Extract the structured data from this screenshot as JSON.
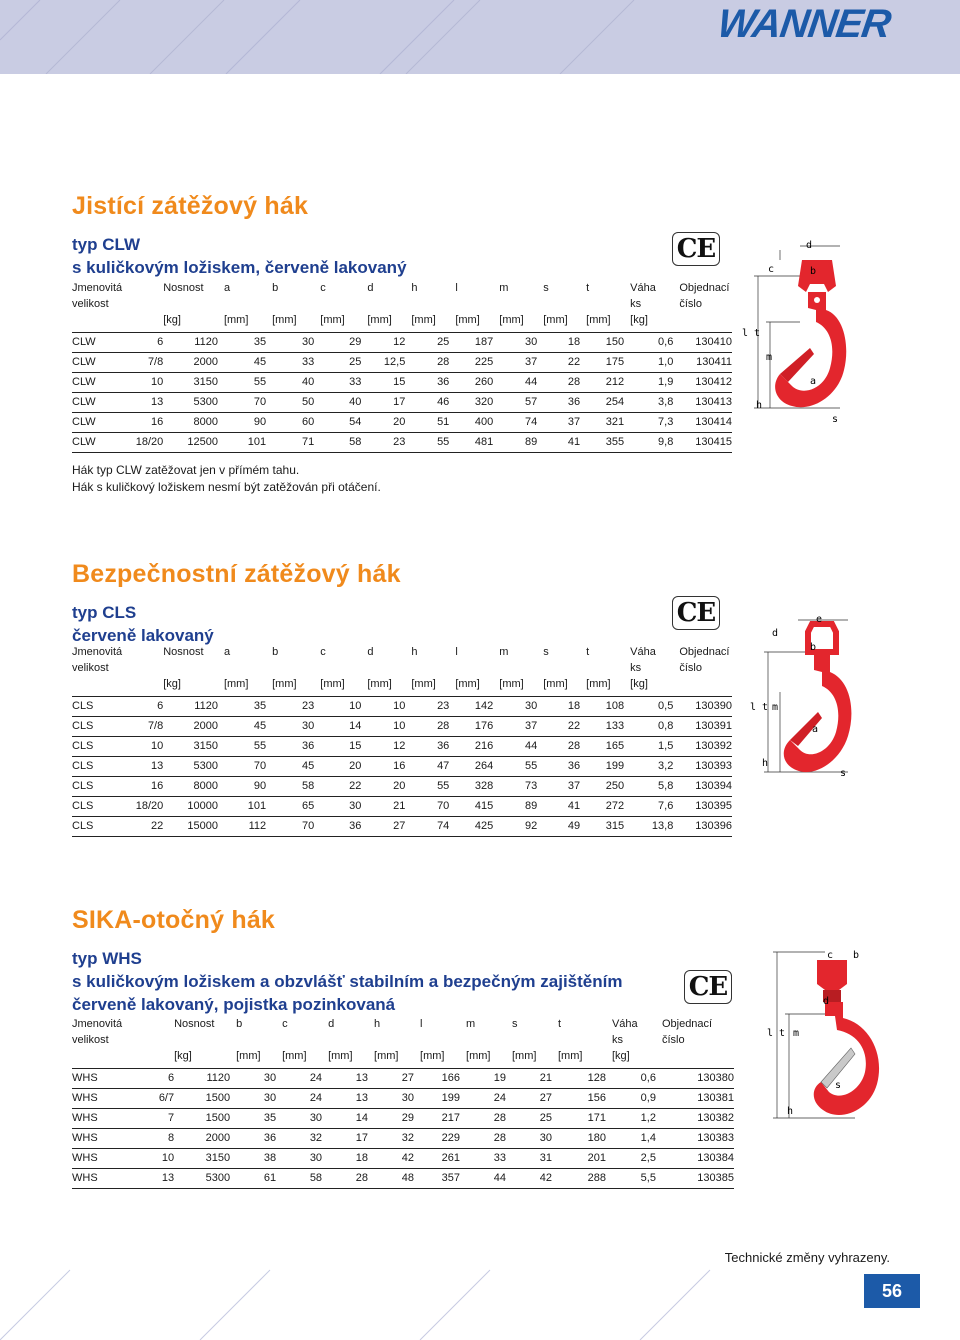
{
  "header": {
    "brand": "WANNER"
  },
  "sections": [
    {
      "title": "Jistící zátěžový hák",
      "subtitles": [
        "typ CLW",
        "s kuličkovým ložiskem, červeně lakovaný"
      ],
      "ce": "CE",
      "headers1": [
        "Jmenovitá",
        "",
        "Nosnost",
        "a",
        "b",
        "c",
        "d",
        "h",
        "l",
        "m",
        "s",
        "t",
        "Váha",
        "Objednací"
      ],
      "headers2": [
        "velikost",
        "",
        "",
        "",
        "",
        "",
        "",
        "",
        "",
        "",
        "",
        "",
        "ks",
        "číslo"
      ],
      "units": [
        "",
        "",
        "[kg]",
        "[mm]",
        "[mm]",
        "[mm]",
        "[mm]",
        "[mm]",
        "[mm]",
        "[mm]",
        "[mm]",
        "[mm]",
        "[kg]",
        ""
      ],
      "rows": [
        [
          "CLW",
          "6",
          "1120",
          "35",
          "30",
          "29",
          "12",
          "25",
          "187",
          "30",
          "18",
          "150",
          "0,6",
          "130410"
        ],
        [
          "CLW",
          "7/8",
          "2000",
          "45",
          "33",
          "25",
          "12,5",
          "28",
          "225",
          "37",
          "22",
          "175",
          "1,0",
          "130411"
        ],
        [
          "CLW",
          "10",
          "3150",
          "55",
          "40",
          "33",
          "15",
          "36",
          "260",
          "44",
          "28",
          "212",
          "1,9",
          "130412"
        ],
        [
          "CLW",
          "13",
          "5300",
          "70",
          "50",
          "40",
          "17",
          "46",
          "320",
          "57",
          "36",
          "254",
          "3,8",
          "130413"
        ],
        [
          "CLW",
          "16",
          "8000",
          "90",
          "60",
          "54",
          "20",
          "51",
          "400",
          "74",
          "37",
          "321",
          "7,3",
          "130414"
        ],
        [
          "CLW",
          "18/20",
          "12500",
          "101",
          "71",
          "58",
          "23",
          "55",
          "481",
          "89",
          "41",
          "355",
          "9,8",
          "130415"
        ]
      ],
      "notes": [
        "Hák typ CLW  zatěžovat jen v přímém tahu.",
        "Hák s kuličkový ložiskem nesmí být zatěžován při otáčení."
      ],
      "diagram_labels": [
        "c",
        "d",
        "b",
        "l t",
        "m",
        "a",
        "h",
        "s"
      ]
    },
    {
      "title": "Bezpečnostní zátěžový hák",
      "subtitles": [
        "typ CLS",
        "červeně lakovaný"
      ],
      "ce": "CE",
      "headers1": [
        "Jmenovitá",
        "",
        "Nosnost",
        "a",
        "b",
        "c",
        "d",
        "h",
        "l",
        "m",
        "s",
        "t",
        "Váha",
        "Objednací"
      ],
      "headers2": [
        "velikost",
        "",
        "",
        "",
        "",
        "",
        "",
        "",
        "",
        "",
        "",
        "",
        "ks",
        "číslo"
      ],
      "units": [
        "",
        "",
        "[kg]",
        "[mm]",
        "[mm]",
        "[mm]",
        "[mm]",
        "[mm]",
        "[mm]",
        "[mm]",
        "[mm]",
        "[mm]",
        "[kg]",
        ""
      ],
      "rows": [
        [
          "CLS",
          "6",
          "1120",
          "35",
          "23",
          "10",
          "10",
          "23",
          "142",
          "30",
          "18",
          "108",
          "0,5",
          "130390"
        ],
        [
          "CLS",
          "7/8",
          "2000",
          "45",
          "30",
          "14",
          "10",
          "28",
          "176",
          "37",
          "22",
          "133",
          "0,8",
          "130391"
        ],
        [
          "CLS",
          "10",
          "3150",
          "55",
          "36",
          "15",
          "12",
          "36",
          "216",
          "44",
          "28",
          "165",
          "1,5",
          "130392"
        ],
        [
          "CLS",
          "13",
          "5300",
          "70",
          "45",
          "20",
          "16",
          "47",
          "264",
          "55",
          "36",
          "199",
          "3,2",
          "130393"
        ],
        [
          "CLS",
          "16",
          "8000",
          "90",
          "58",
          "22",
          "20",
          "55",
          "328",
          "73",
          "37",
          "250",
          "5,8",
          "130394"
        ],
        [
          "CLS",
          "18/20",
          "10000",
          "101",
          "65",
          "30",
          "21",
          "70",
          "415",
          "89",
          "41",
          "272",
          "7,6",
          "130395"
        ],
        [
          "CLS",
          "22",
          "15000",
          "112",
          "70",
          "36",
          "27",
          "74",
          "425",
          "92",
          "49",
          "315",
          "13,8",
          "130396"
        ]
      ],
      "diagram_labels": [
        "e",
        "d",
        "b",
        "l t",
        "m",
        "a",
        "h",
        "s"
      ]
    },
    {
      "title": "SIKA-otočný hák",
      "subtitles": [
        "typ WHS",
        "s kuličkovým ložiskem a obzvlášť stabilním a bezpečným zajištěním",
        "červeně lakovaný, pojistka pozinkovaná"
      ],
      "ce": "CE",
      "headers1": [
        "Jmenovitá",
        "",
        "Nosnost",
        "b",
        "c",
        "d",
        "h",
        "l",
        "m",
        "s",
        "t",
        "Váha",
        "Objednací"
      ],
      "headers2": [
        "velikost",
        "",
        "",
        "",
        "",
        "",
        "",
        "",
        "",
        "",
        "",
        "ks",
        "číslo"
      ],
      "units": [
        "",
        "",
        "[kg]",
        "[mm]",
        "[mm]",
        "[mm]",
        "[mm]",
        "[mm]",
        "[mm]",
        "[mm]",
        "[mm]",
        "[kg]",
        ""
      ],
      "rows": [
        [
          "WHS",
          "6",
          "1120",
          "30",
          "24",
          "13",
          "27",
          "166",
          "19",
          "21",
          "128",
          "0,6",
          "130380"
        ],
        [
          "WHS",
          "6/7",
          "1500",
          "30",
          "24",
          "13",
          "30",
          "199",
          "24",
          "27",
          "156",
          "0,9",
          "130381"
        ],
        [
          "WHS",
          "7",
          "1500",
          "35",
          "30",
          "14",
          "29",
          "217",
          "28",
          "25",
          "171",
          "1,2",
          "130382"
        ],
        [
          "WHS",
          "8",
          "2000",
          "36",
          "32",
          "17",
          "32",
          "229",
          "28",
          "30",
          "180",
          "1,4",
          "130383"
        ],
        [
          "WHS",
          "10",
          "3150",
          "38",
          "30",
          "18",
          "42",
          "261",
          "33",
          "31",
          "201",
          "2,5",
          "130384"
        ],
        [
          "WHS",
          "13",
          "5300",
          "61",
          "58",
          "28",
          "48",
          "357",
          "44",
          "42",
          "288",
          "5,5",
          "130385"
        ]
      ],
      "diagram_labels": [
        "c",
        "b",
        "d",
        "l t",
        "m",
        "s",
        "h"
      ]
    }
  ],
  "footer": {
    "note": "Technické změny vyhrazeny.",
    "page": "56"
  },
  "colors": {
    "title_orange": "#f08a1c",
    "subtitle_blue": "#1f3f8f",
    "brand_blue": "#1c5aa8",
    "header_band": "#c9cce3",
    "hook_red": "#e3262d"
  }
}
